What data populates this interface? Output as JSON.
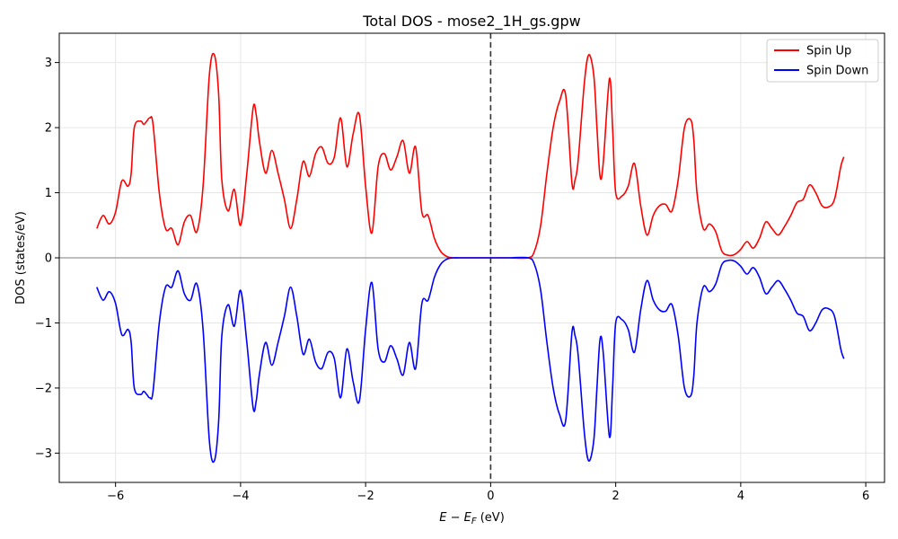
{
  "chart_data": {
    "type": "line",
    "title": "Total DOS - mose2_1H_gs.gpw",
    "xlabel_main": "E − E",
    "xlabel_sub": "F",
    "xlabel_unit": " (eV)",
    "ylabel": "DOS (states/eV)",
    "xlim": [
      -6.9,
      6.3
    ],
    "ylim": [
      -3.45,
      3.45
    ],
    "xticks": [
      -6,
      -4,
      -2,
      0,
      2,
      4,
      6
    ],
    "xtick_labels": [
      "−6",
      "−4",
      "−2",
      "0",
      "2",
      "4",
      "6"
    ],
    "yticks": [
      -3,
      -2,
      -1,
      0,
      1,
      2,
      3
    ],
    "ytick_labels": [
      "−3",
      "−2",
      "−1",
      "0",
      "1",
      "2",
      "3"
    ],
    "grid": true,
    "legend_position": "top-right",
    "fermi_level": 0,
    "zero_line": 0,
    "colors": {
      "spin_up": "#ff0000",
      "spin_down": "#0000ff",
      "fermi": "#333333",
      "zero": "#999999",
      "grid": "#e6e6e6"
    },
    "series": [
      {
        "name": "Spin Up",
        "x": [
          -6.3,
          -6.2,
          -6.1,
          -6.0,
          -5.9,
          -5.8,
          -5.75,
          -5.7,
          -5.6,
          -5.55,
          -5.5,
          -5.45,
          -5.4,
          -5.3,
          -5.2,
          -5.1,
          -5.0,
          -4.9,
          -4.8,
          -4.7,
          -4.6,
          -4.5,
          -4.42,
          -4.35,
          -4.3,
          -4.2,
          -4.1,
          -4.0,
          -3.9,
          -3.8,
          -3.75,
          -3.7,
          -3.6,
          -3.5,
          -3.4,
          -3.3,
          -3.2,
          -3.1,
          -3.0,
          -2.9,
          -2.8,
          -2.7,
          -2.6,
          -2.5,
          -2.4,
          -2.3,
          -2.2,
          -2.1,
          -2.0,
          -1.9,
          -1.8,
          -1.7,
          -1.6,
          -1.5,
          -1.4,
          -1.3,
          -1.2,
          -1.1,
          -1.0,
          -0.9,
          -0.8,
          -0.7,
          -0.6,
          -0.5,
          -0.4,
          0,
          0.3,
          0.6,
          0.7,
          0.8,
          0.9,
          1.0,
          1.1,
          1.2,
          1.3,
          1.35,
          1.4,
          1.5,
          1.57,
          1.65,
          1.7,
          1.75,
          1.8,
          1.9,
          1.95,
          2.0,
          2.1,
          2.2,
          2.3,
          2.4,
          2.5,
          2.6,
          2.7,
          2.8,
          2.9,
          3.0,
          3.1,
          3.2,
          3.25,
          3.3,
          3.4,
          3.5,
          3.6,
          3.7,
          3.8,
          3.9,
          4.0,
          4.1,
          4.2,
          4.3,
          4.4,
          4.5,
          4.6,
          4.7,
          4.8,
          4.9,
          5.0,
          5.1,
          5.2,
          5.3,
          5.4,
          5.5,
          5.6,
          5.65
        ],
        "values": [
          0.45,
          0.65,
          0.52,
          0.7,
          1.18,
          1.1,
          1.3,
          2.0,
          2.1,
          2.05,
          2.1,
          2.15,
          2.05,
          1.0,
          0.45,
          0.45,
          0.2,
          0.55,
          0.65,
          0.4,
          1.1,
          2.8,
          3.12,
          2.5,
          1.2,
          0.72,
          1.05,
          0.5,
          1.3,
          2.3,
          2.2,
          1.8,
          1.3,
          1.65,
          1.3,
          0.9,
          0.45,
          0.9,
          1.48,
          1.25,
          1.6,
          1.7,
          1.45,
          1.55,
          2.15,
          1.4,
          1.9,
          2.2,
          1.1,
          0.38,
          1.4,
          1.6,
          1.35,
          1.55,
          1.8,
          1.3,
          1.7,
          0.7,
          0.65,
          0.3,
          0.1,
          0.02,
          0.0,
          0.0,
          0.0,
          0.0,
          0.0,
          0.0,
          0.1,
          0.5,
          1.3,
          2.0,
          2.4,
          2.5,
          1.15,
          1.2,
          1.5,
          2.7,
          3.12,
          2.8,
          2.0,
          1.25,
          1.45,
          2.75,
          2.0,
          1.0,
          0.95,
          1.1,
          1.45,
          0.8,
          0.35,
          0.65,
          0.8,
          0.82,
          0.72,
          1.2,
          2.0,
          2.12,
          1.8,
          1.0,
          0.45,
          0.52,
          0.4,
          0.1,
          0.04,
          0.05,
          0.13,
          0.25,
          0.15,
          0.3,
          0.55,
          0.45,
          0.35,
          0.48,
          0.65,
          0.85,
          0.9,
          1.12,
          1.0,
          0.8,
          0.78,
          0.9,
          1.4,
          1.55
        ]
      },
      {
        "name": "Spin Down",
        "x": [
          -6.3,
          -6.2,
          -6.1,
          -6.0,
          -5.9,
          -5.8,
          -5.75,
          -5.7,
          -5.6,
          -5.55,
          -5.5,
          -5.45,
          -5.4,
          -5.3,
          -5.2,
          -5.1,
          -5.0,
          -4.9,
          -4.8,
          -4.7,
          -4.6,
          -4.5,
          -4.42,
          -4.35,
          -4.3,
          -4.2,
          -4.1,
          -4.0,
          -3.9,
          -3.8,
          -3.75,
          -3.7,
          -3.6,
          -3.5,
          -3.4,
          -3.3,
          -3.2,
          -3.1,
          -3.0,
          -2.9,
          -2.8,
          -2.7,
          -2.6,
          -2.5,
          -2.4,
          -2.3,
          -2.2,
          -2.1,
          -2.0,
          -1.9,
          -1.8,
          -1.7,
          -1.6,
          -1.5,
          -1.4,
          -1.3,
          -1.2,
          -1.1,
          -1.0,
          -0.9,
          -0.8,
          -0.7,
          -0.6,
          -0.5,
          -0.4,
          0,
          0.3,
          0.6,
          0.7,
          0.8,
          0.9,
          1.0,
          1.1,
          1.2,
          1.3,
          1.35,
          1.4,
          1.5,
          1.57,
          1.65,
          1.7,
          1.75,
          1.8,
          1.9,
          1.95,
          2.0,
          2.1,
          2.2,
          2.3,
          2.4,
          2.5,
          2.6,
          2.7,
          2.8,
          2.9,
          3.0,
          3.1,
          3.2,
          3.25,
          3.3,
          3.4,
          3.5,
          3.6,
          3.7,
          3.8,
          3.9,
          4.0,
          4.1,
          4.2,
          4.3,
          4.4,
          4.5,
          4.6,
          4.7,
          4.8,
          4.9,
          5.0,
          5.1,
          5.2,
          5.3,
          5.4,
          5.5,
          5.6,
          5.65
        ],
        "values": [
          -0.45,
          -0.65,
          -0.52,
          -0.7,
          -1.18,
          -1.1,
          -1.3,
          -2.0,
          -2.1,
          -2.05,
          -2.1,
          -2.15,
          -2.05,
          -1.0,
          -0.45,
          -0.45,
          -0.2,
          -0.55,
          -0.65,
          -0.4,
          -1.1,
          -2.8,
          -3.12,
          -2.5,
          -1.2,
          -0.72,
          -1.05,
          -0.5,
          -1.3,
          -2.3,
          -2.2,
          -1.8,
          -1.3,
          -1.65,
          -1.3,
          -0.9,
          -0.45,
          -0.9,
          -1.48,
          -1.25,
          -1.6,
          -1.7,
          -1.45,
          -1.55,
          -2.15,
          -1.4,
          -1.9,
          -2.2,
          -1.1,
          -0.38,
          -1.4,
          -1.6,
          -1.35,
          -1.55,
          -1.8,
          -1.3,
          -1.7,
          -0.7,
          -0.65,
          -0.3,
          -0.1,
          -0.02,
          0.0,
          0.0,
          0.0,
          0.0,
          0.0,
          0.0,
          -0.1,
          -0.5,
          -1.3,
          -2.0,
          -2.4,
          -2.5,
          -1.15,
          -1.2,
          -1.5,
          -2.7,
          -3.12,
          -2.8,
          -2.0,
          -1.25,
          -1.45,
          -2.75,
          -2.0,
          -1.0,
          -0.95,
          -1.1,
          -1.45,
          -0.8,
          -0.35,
          -0.65,
          -0.8,
          -0.82,
          -0.72,
          -1.2,
          -2.0,
          -2.12,
          -1.8,
          -1.0,
          -0.45,
          -0.52,
          -0.4,
          -0.1,
          -0.04,
          -0.05,
          -0.13,
          -0.25,
          -0.15,
          -0.3,
          -0.55,
          -0.45,
          -0.35,
          -0.48,
          -0.65,
          -0.85,
          -0.9,
          -1.12,
          -1.0,
          -0.8,
          -0.78,
          -0.9,
          -1.4,
          -1.55
        ]
      }
    ]
  }
}
